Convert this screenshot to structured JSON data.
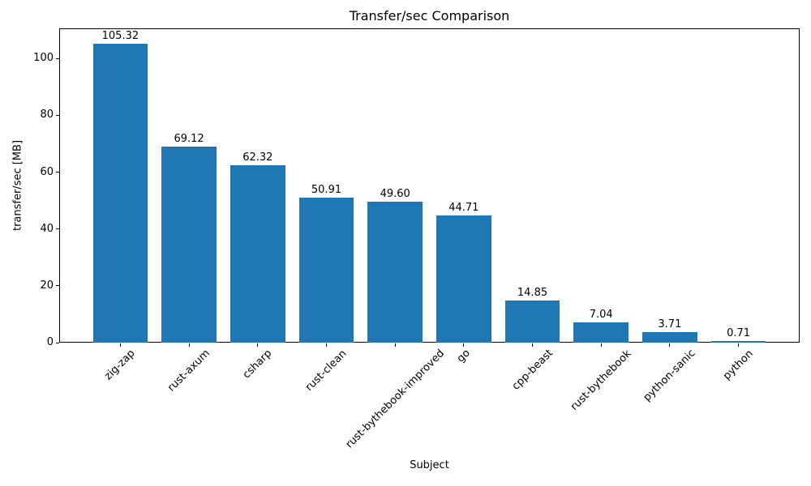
{
  "figure": {
    "background": "#ffffff",
    "frame_color": "#000000",
    "text_color": "#000000"
  },
  "chart_data": {
    "type": "bar",
    "title": "Transfer/sec Comparison",
    "xlabel": "Subject",
    "ylabel": "transfer/sec [MB]",
    "categories": [
      "zig-zap",
      "rust-axum",
      "csharp",
      "rust-clean",
      "rust-bythebook-improved",
      "go",
      "cpp-beast",
      "rust-bythebook",
      "python-sanic",
      "python"
    ],
    "values": [
      105.32,
      69.12,
      62.32,
      50.91,
      49.6,
      44.71,
      14.85,
      7.04,
      3.71,
      0.71
    ],
    "value_labels": [
      "105.32",
      "69.12",
      "62.32",
      "50.91",
      "49.60",
      "44.71",
      "14.85",
      "7.04",
      "3.71",
      "0.71"
    ],
    "yticks": [
      0,
      20,
      40,
      60,
      80,
      100
    ],
    "ylim": [
      0,
      110.6
    ],
    "bar_color": "#1f77b4",
    "grid": false,
    "legend": null,
    "x_tick_rotation_deg": 45
  }
}
